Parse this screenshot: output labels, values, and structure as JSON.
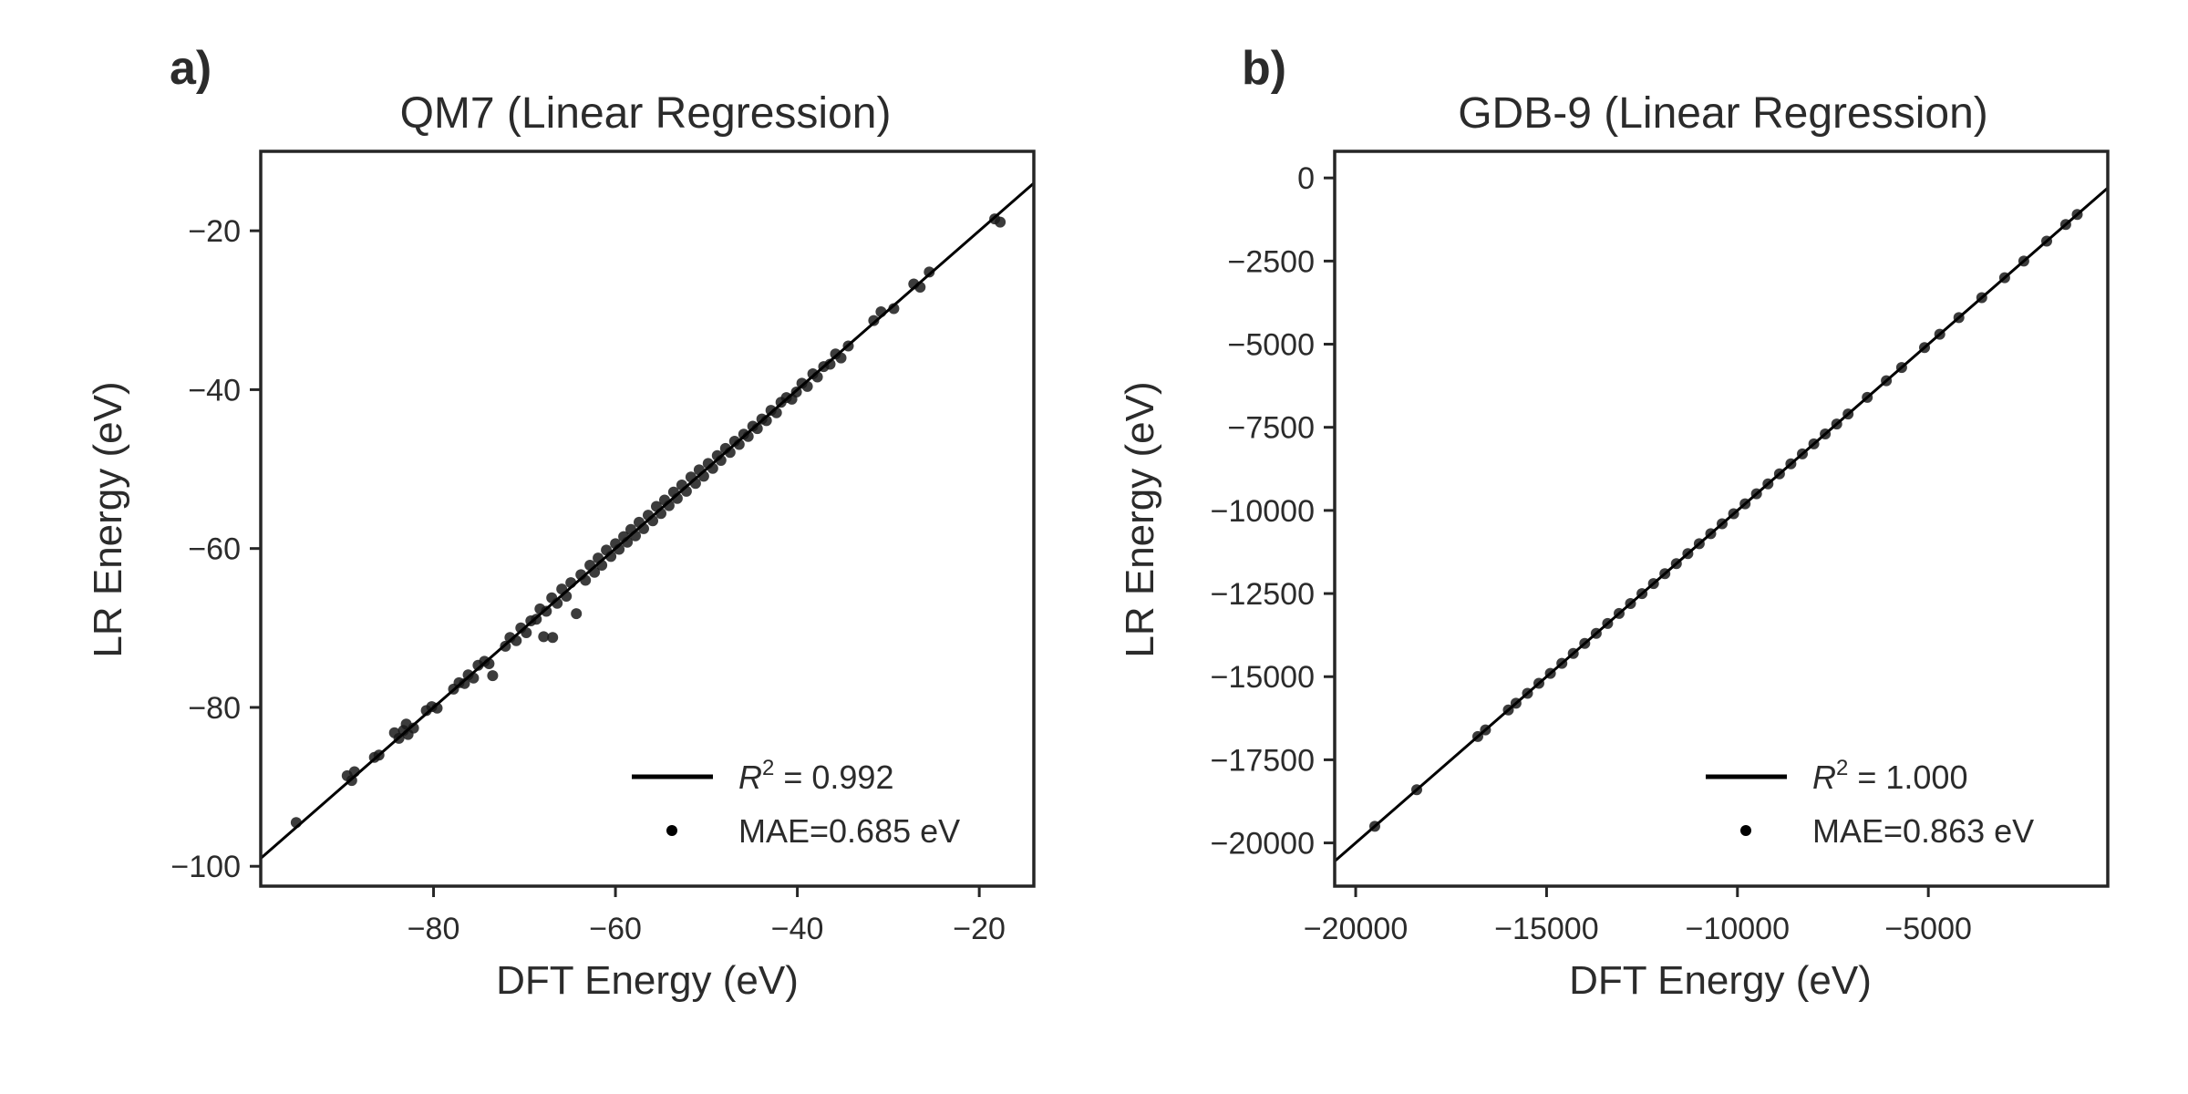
{
  "chart_data": [
    {
      "panel_label": "a)",
      "type": "scatter",
      "title": "QM7 (Linear Regression)",
      "xlabel": "DFT Energy (eV)",
      "ylabel": "LR Energy (eV)",
      "xlim": [
        -99,
        -14
      ],
      "ylim": [
        -102.5,
        -10
      ],
      "xticks": [
        -80,
        -60,
        -40,
        -20
      ],
      "xtick_labels": [
        "−80",
        "−60",
        "−40",
        "−20"
      ],
      "yticks": [
        -100,
        -80,
        -60,
        -40,
        -20
      ],
      "ytick_labels": [
        "−100",
        "−80",
        "−60",
        "−40",
        "−20"
      ],
      "grid": false,
      "legend_position": "bottom-right",
      "legend": [
        {
          "kind": "line",
          "label_prefix": "R",
          "label_sup": "2",
          "label_suffix": " = 0.992"
        },
        {
          "kind": "point",
          "label": "MAE=0.685 eV"
        }
      ],
      "fit_line": {
        "x": [
          -99,
          -14
        ],
        "y": [
          -99,
          -14
        ]
      },
      "series": [
        {
          "points": [
            [
              -95.1,
              -94.5
            ],
            [
              -89.5,
              -88.6
            ],
            [
              -89.0,
              -89.2
            ],
            [
              -88.7,
              -88.1
            ],
            [
              -86.5,
              -86.3
            ],
            [
              -86.0,
              -86.0
            ],
            [
              -84.3,
              -83.2
            ],
            [
              -83.8,
              -83.9
            ],
            [
              -83.3,
              -82.9
            ],
            [
              -82.8,
              -83.4
            ],
            [
              -83.0,
              -82.1
            ],
            [
              -82.2,
              -82.6
            ],
            [
              -80.8,
              -80.4
            ],
            [
              -80.2,
              -79.9
            ],
            [
              -79.6,
              -80.1
            ],
            [
              -77.8,
              -77.7
            ],
            [
              -77.2,
              -76.9
            ],
            [
              -76.6,
              -77.0
            ],
            [
              -76.2,
              -75.9
            ],
            [
              -75.6,
              -76.3
            ],
            [
              -75.1,
              -74.7
            ],
            [
              -74.4,
              -74.2
            ],
            [
              -73.9,
              -74.5
            ],
            [
              -73.5,
              -76.0
            ],
            [
              -72.1,
              -72.3
            ],
            [
              -71.6,
              -71.2
            ],
            [
              -70.9,
              -71.6
            ],
            [
              -70.4,
              -70.0
            ],
            [
              -69.8,
              -70.6
            ],
            [
              -69.3,
              -69.1
            ],
            [
              -68.7,
              -68.9
            ],
            [
              -68.3,
              -67.6
            ],
            [
              -67.9,
              -71.1
            ],
            [
              -66.9,
              -71.2
            ],
            [
              -67.6,
              -67.9
            ],
            [
              -67.0,
              -66.2
            ],
            [
              -66.4,
              -66.9
            ],
            [
              -65.9,
              -65.1
            ],
            [
              -65.4,
              -66.0
            ],
            [
              -64.9,
              -64.3
            ],
            [
              -64.3,
              -68.2
            ],
            [
              -63.8,
              -63.3
            ],
            [
              -63.3,
              -64.0
            ],
            [
              -62.8,
              -62.1
            ],
            [
              -62.3,
              -63.0
            ],
            [
              -61.9,
              -61.2
            ],
            [
              -61.5,
              -62.1
            ],
            [
              -61.0,
              -60.2
            ],
            [
              -60.5,
              -61.0
            ],
            [
              -60.0,
              -59.4
            ],
            [
              -59.6,
              -60.1
            ],
            [
              -59.1,
              -58.5
            ],
            [
              -58.7,
              -59.2
            ],
            [
              -58.3,
              -57.6
            ],
            [
              -57.8,
              -58.4
            ],
            [
              -57.4,
              -56.7
            ],
            [
              -56.9,
              -57.5
            ],
            [
              -56.4,
              -55.8
            ],
            [
              -55.9,
              -56.5
            ],
            [
              -55.5,
              -54.7
            ],
            [
              -55.0,
              -55.6
            ],
            [
              -54.6,
              -53.9
            ],
            [
              -54.1,
              -54.6
            ],
            [
              -53.6,
              -52.9
            ],
            [
              -53.2,
              -53.7
            ],
            [
              -52.7,
              -52.0
            ],
            [
              -52.2,
              -52.8
            ],
            [
              -51.7,
              -51.0
            ],
            [
              -51.2,
              -51.8
            ],
            [
              -50.8,
              -50.1
            ],
            [
              -50.3,
              -50.9
            ],
            [
              -49.8,
              -49.3
            ],
            [
              -49.3,
              -49.9
            ],
            [
              -48.8,
              -48.3
            ],
            [
              -48.4,
              -48.9
            ],
            [
              -47.9,
              -47.4
            ],
            [
              -47.4,
              -47.9
            ],
            [
              -46.9,
              -46.5
            ],
            [
              -46.4,
              -46.9
            ],
            [
              -45.9,
              -45.6
            ],
            [
              -45.4,
              -45.9
            ],
            [
              -44.9,
              -44.6
            ],
            [
              -44.4,
              -44.9
            ],
            [
              -43.9,
              -43.7
            ],
            [
              -43.4,
              -43.9
            ],
            [
              -42.9,
              -42.6
            ],
            [
              -42.3,
              -42.9
            ],
            [
              -41.8,
              -41.6
            ],
            [
              -41.2,
              -41.0
            ],
            [
              -40.6,
              -41.2
            ],
            [
              -40.1,
              -40.3
            ],
            [
              -39.5,
              -39.2
            ],
            [
              -38.9,
              -39.6
            ],
            [
              -38.3,
              -38.0
            ],
            [
              -37.8,
              -38.4
            ],
            [
              -37.1,
              -37.1
            ],
            [
              -36.4,
              -36.8
            ],
            [
              -35.8,
              -35.5
            ],
            [
              -35.2,
              -36.0
            ],
            [
              -34.4,
              -34.5
            ],
            [
              -31.6,
              -31.3
            ],
            [
              -30.8,
              -30.2
            ],
            [
              -29.4,
              -29.8
            ],
            [
              -27.2,
              -26.7
            ],
            [
              -26.5,
              -27.1
            ],
            [
              -25.5,
              -25.2
            ],
            [
              -18.3,
              -18.5
            ],
            [
              -17.7,
              -18.9
            ]
          ]
        }
      ]
    },
    {
      "panel_label": "b)",
      "type": "scatter",
      "title": "GDB-9 (Linear Regression)",
      "xlabel": "DFT Energy (eV)",
      "ylabel": "LR Energy (eV)",
      "xlim": [
        -20550,
        -300
      ],
      "ylim": [
        -21300,
        800
      ],
      "xticks": [
        -20000,
        -15000,
        -10000,
        -5000
      ],
      "xtick_labels": [
        "−20000",
        "−15000",
        "−10000",
        "−5000"
      ],
      "yticks": [
        -20000,
        -17500,
        -15000,
        -12500,
        -10000,
        -7500,
        -5000,
        -2500,
        0
      ],
      "ytick_labels": [
        "−20000",
        "−17500",
        "−15000",
        "−12500",
        "−10000",
        "−7500",
        "−5000",
        "−2500",
        "0"
      ],
      "grid": false,
      "legend_position": "bottom-right",
      "legend": [
        {
          "kind": "line",
          "label_prefix": "R",
          "label_sup": "2",
          "label_suffix": " = 1.000"
        },
        {
          "kind": "point",
          "label": "MAE=0.863 eV"
        }
      ],
      "fit_line": {
        "x": [
          -20550,
          -300
        ],
        "y": [
          -20550,
          -300
        ]
      },
      "series": [
        {
          "points": [
            [
              -19500,
              -19500
            ],
            [
              -18400,
              -18400
            ],
            [
              -16800,
              -16800
            ],
            [
              -16600,
              -16600
            ],
            [
              -16000,
              -16000
            ],
            [
              -15800,
              -15800
            ],
            [
              -15500,
              -15500
            ],
            [
              -15200,
              -15200
            ],
            [
              -14900,
              -14900
            ],
            [
              -14600,
              -14600
            ],
            [
              -14300,
              -14300
            ],
            [
              -14000,
              -14000
            ],
            [
              -13700,
              -13700
            ],
            [
              -13400,
              -13400
            ],
            [
              -13100,
              -13100
            ],
            [
              -12800,
              -12800
            ],
            [
              -12500,
              -12500
            ],
            [
              -12200,
              -12200
            ],
            [
              -11900,
              -11900
            ],
            [
              -11600,
              -11600
            ],
            [
              -11300,
              -11300
            ],
            [
              -11000,
              -11000
            ],
            [
              -10700,
              -10700
            ],
            [
              -10400,
              -10400
            ],
            [
              -10100,
              -10100
            ],
            [
              -9800,
              -9800
            ],
            [
              -9500,
              -9500
            ],
            [
              -9200,
              -9200
            ],
            [
              -8900,
              -8900
            ],
            [
              -8600,
              -8600
            ],
            [
              -8300,
              -8300
            ],
            [
              -8000,
              -8000
            ],
            [
              -7700,
              -7700
            ],
            [
              -7400,
              -7400
            ],
            [
              -7100,
              -7100
            ],
            [
              -6600,
              -6600
            ],
            [
              -6100,
              -6100
            ],
            [
              -5700,
              -5700
            ],
            [
              -5100,
              -5100
            ],
            [
              -4700,
              -4700
            ],
            [
              -4200,
              -4200
            ],
            [
              -3600,
              -3600
            ],
            [
              -3000,
              -3000
            ],
            [
              -2500,
              -2500
            ],
            [
              -1900,
              -1900
            ],
            [
              -1400,
              -1400
            ],
            [
              -1100,
              -1100
            ]
          ]
        }
      ]
    }
  ]
}
